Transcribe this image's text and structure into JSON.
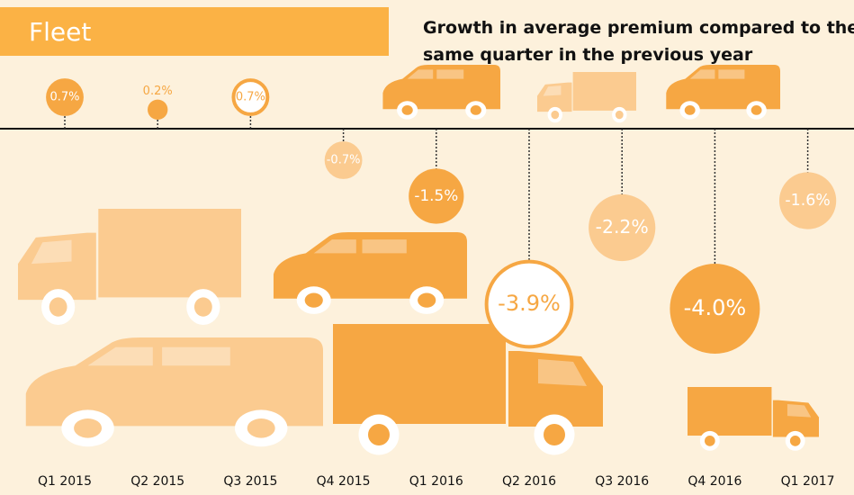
{
  "header": "Fleet",
  "chart_data": {
    "type": "bubble",
    "title": "Growth in average premium compared to the same quarter in the previous year",
    "categories": [
      "Q1 2015",
      "Q2 2015",
      "Q3 2015",
      "Q4 2015",
      "Q1 2016",
      "Q2 2016",
      "Q3 2016",
      "Q4 2016",
      "Q1 2017"
    ],
    "values": [
      0.7,
      0.2,
      0.7,
      -0.7,
      -1.5,
      -3.9,
      -2.2,
      -4.0,
      -1.6
    ],
    "value_labels": [
      "0.7%",
      "0.2%",
      "0.7%",
      "-0.7%",
      "-1.5%",
      "-3.9%",
      "-2.2%",
      "-4.0%",
      "-1.6%"
    ],
    "colors": [
      "#f6a743",
      "#f6a743",
      "#f6a743",
      "#fbcb90",
      "#f6a743",
      "#f6a743",
      "#fbcb90",
      "#f6a743",
      "#fbcb90"
    ],
    "marker_styles": [
      "filled",
      "filled",
      "outlined",
      "filled",
      "filled",
      "outlined",
      "filled",
      "filled",
      "filled"
    ]
  }
}
